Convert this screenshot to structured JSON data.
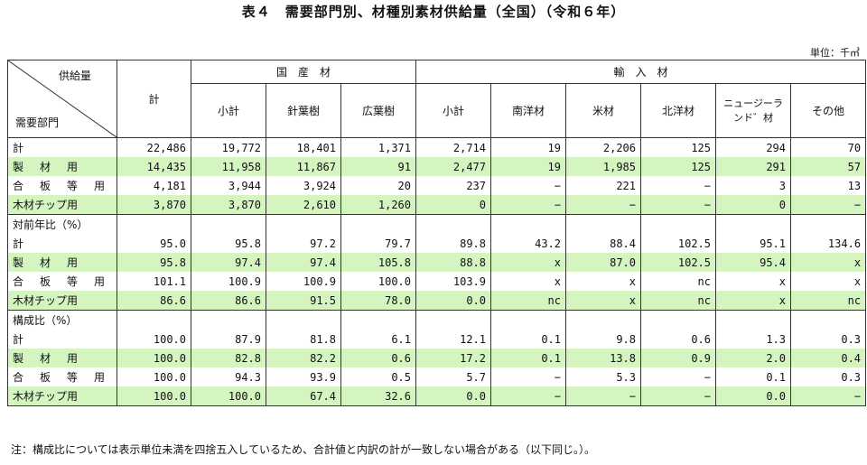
{
  "title": "表４　需要部門別、材種別素材供給量（全国）（令和６年）",
  "unit": "単位：千㎥",
  "header": {
    "corner_top": "供給量",
    "corner_bottom": "需要部門",
    "total": "計",
    "domestic": "国　産　材",
    "imported": "輸　入　材",
    "sub": [
      "小計",
      "針葉樹",
      "広葉樹",
      "小計",
      "南洋材",
      "米材",
      "北洋材",
      "ニュージーランド゛材",
      "その他"
    ]
  },
  "sections": [
    {
      "title": "",
      "rows": [
        {
          "label": "計",
          "green": false,
          "values": [
            "22,486",
            "19,772",
            "18,401",
            "1,371",
            "2,714",
            "19",
            "2,206",
            "125",
            "294",
            "70"
          ]
        },
        {
          "label": "製材用",
          "green": true,
          "values": [
            "14,435",
            "11,958",
            "11,867",
            "91",
            "2,477",
            "19",
            "1,985",
            "125",
            "291",
            "57"
          ]
        },
        {
          "label": "合板等用",
          "green": false,
          "values": [
            "4,181",
            "3,944",
            "3,924",
            "20",
            "237",
            "−",
            "221",
            "−",
            "3",
            "13"
          ]
        },
        {
          "label": "木材チップ用",
          "green": true,
          "values": [
            "3,870",
            "3,870",
            "2,610",
            "1,260",
            "0",
            "−",
            "−",
            "−",
            "0",
            "−"
          ]
        }
      ]
    },
    {
      "title": "対前年比（%）",
      "rows": [
        {
          "label": "計",
          "green": false,
          "values": [
            "95.0",
            "95.8",
            "97.2",
            "79.7",
            "89.8",
            "43.2",
            "88.4",
            "102.5",
            "95.1",
            "134.6"
          ]
        },
        {
          "label": "製材用",
          "green": true,
          "values": [
            "95.8",
            "97.4",
            "97.4",
            "105.8",
            "88.8",
            "x",
            "87.0",
            "102.5",
            "95.4",
            "x"
          ]
        },
        {
          "label": "合板等用",
          "green": false,
          "values": [
            "101.1",
            "100.9",
            "100.9",
            "100.0",
            "103.9",
            "x",
            "x",
            "nc",
            "x",
            "x"
          ]
        },
        {
          "label": "木材チップ用",
          "green": true,
          "values": [
            "86.6",
            "86.6",
            "91.5",
            "78.0",
            "0.0",
            "nc",
            "x",
            "nc",
            "x",
            "nc"
          ]
        }
      ]
    },
    {
      "title": "構成比（%）",
      "rows": [
        {
          "label": "計",
          "green": false,
          "values": [
            "100.0",
            "87.9",
            "81.8",
            "6.1",
            "12.1",
            "0.1",
            "9.8",
            "0.6",
            "1.3",
            "0.3"
          ]
        },
        {
          "label": "製材用",
          "green": true,
          "values": [
            "100.0",
            "82.8",
            "82.2",
            "0.6",
            "17.2",
            "0.1",
            "13.8",
            "0.9",
            "2.0",
            "0.4"
          ]
        },
        {
          "label": "合板等用",
          "green": false,
          "values": [
            "100.0",
            "94.3",
            "93.9",
            "0.5",
            "5.7",
            "−",
            "5.3",
            "−",
            "0.1",
            "0.3"
          ]
        },
        {
          "label": "木材チップ用",
          "green": true,
          "values": [
            "100.0",
            "100.0",
            "67.4",
            "32.6",
            "0.0",
            "−",
            "−",
            "−",
            "0.0",
            "−"
          ]
        }
      ]
    }
  ],
  "note": "注：構成比については表示単位未満を四捨五入しているため、合計値と内訳の計が一致しない場合がある（以下同じ。）。"
}
